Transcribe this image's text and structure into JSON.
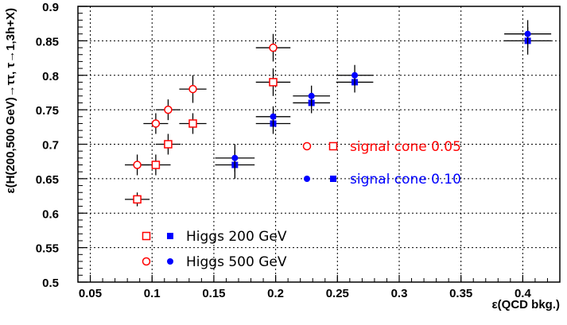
{
  "chart_data": {
    "type": "scatter",
    "xlabel": "ε(QCD bkg.)",
    "ylabel": "ε(H(200,500 GeV)→ττ, τ→1,3h+X)",
    "xlim": [
      0.04,
      0.43
    ],
    "ylim": [
      0.5,
      0.9
    ],
    "x_ticks": [
      "0.05",
      "0.1",
      "0.15",
      "0.2",
      "0.25",
      "0.3",
      "0.35",
      "0.4"
    ],
    "y_ticks": [
      "0.5",
      "0.55",
      "0.6",
      "0.65",
      "0.7",
      "0.75",
      "0.8",
      "0.85",
      "0.9"
    ],
    "grid": true,
    "series": [
      {
        "cone": "0.05",
        "mass": "200 GeV",
        "marker": "open-square",
        "color": "#ff0000",
        "points": [
          {
            "x": 0.088,
            "y": 0.62,
            "xerr": 0.01,
            "yerr": 0.01
          },
          {
            "x": 0.103,
            "y": 0.67,
            "xerr": 0.012,
            "yerr": 0.015
          },
          {
            "x": 0.113,
            "y": 0.7,
            "xerr": 0.01,
            "yerr": 0.015
          },
          {
            "x": 0.133,
            "y": 0.73,
            "xerr": 0.011,
            "yerr": 0.015
          },
          {
            "x": 0.198,
            "y": 0.79,
            "xerr": 0.014,
            "yerr": 0.02
          }
        ]
      },
      {
        "cone": "0.05",
        "mass": "500 GeV",
        "marker": "open-circle",
        "color": "#ff0000",
        "points": [
          {
            "x": 0.088,
            "y": 0.67,
            "xerr": 0.01,
            "yerr": 0.015
          },
          {
            "x": 0.103,
            "y": 0.73,
            "xerr": 0.01,
            "yerr": 0.015
          },
          {
            "x": 0.113,
            "y": 0.75,
            "xerr": 0.01,
            "yerr": 0.015
          },
          {
            "x": 0.133,
            "y": 0.78,
            "xerr": 0.011,
            "yerr": 0.02
          },
          {
            "x": 0.198,
            "y": 0.84,
            "xerr": 0.014,
            "yerr": 0.02
          }
        ]
      },
      {
        "cone": "0.10",
        "mass": "200 GeV",
        "marker": "filled-square",
        "color": "#0000ff",
        "points": [
          {
            "x": 0.167,
            "y": 0.67,
            "xerr": 0.016,
            "yerr": 0.02
          },
          {
            "x": 0.198,
            "y": 0.73,
            "xerr": 0.014,
            "yerr": 0.015
          },
          {
            "x": 0.229,
            "y": 0.76,
            "xerr": 0.015,
            "yerr": 0.015
          },
          {
            "x": 0.264,
            "y": 0.79,
            "xerr": 0.015,
            "yerr": 0.015
          },
          {
            "x": 0.404,
            "y": 0.85,
            "xerr": 0.019,
            "yerr": 0.02
          }
        ]
      },
      {
        "cone": "0.10",
        "mass": "500 GeV",
        "marker": "filled-circle",
        "color": "#0000ff",
        "points": [
          {
            "x": 0.167,
            "y": 0.68,
            "xerr": 0.016,
            "yerr": 0.02
          },
          {
            "x": 0.198,
            "y": 0.74,
            "xerr": 0.014,
            "yerr": 0.015
          },
          {
            "x": 0.229,
            "y": 0.77,
            "xerr": 0.015,
            "yerr": 0.015
          },
          {
            "x": 0.264,
            "y": 0.8,
            "xerr": 0.015,
            "yerr": 0.015
          },
          {
            "x": 0.404,
            "y": 0.86,
            "xerr": 0.019,
            "yerr": 0.02
          }
        ]
      }
    ],
    "annotations": [
      {
        "text": "signal cone 0.05",
        "color": "#ff0000",
        "markers": [
          "open-circle",
          "open-square"
        ]
      },
      {
        "text": "signal cone 0.10",
        "color": "#0000ff",
        "markers": [
          "filled-circle",
          "filled-square"
        ]
      }
    ],
    "legend": {
      "placement": "bottom-left",
      "entries": [
        {
          "label": "Higgs 200 GeV",
          "markers": [
            "open-square",
            "filled-square"
          ]
        },
        {
          "label": "Higgs 500 GeV",
          "markers": [
            "open-circle",
            "filled-circle"
          ]
        }
      ]
    }
  }
}
